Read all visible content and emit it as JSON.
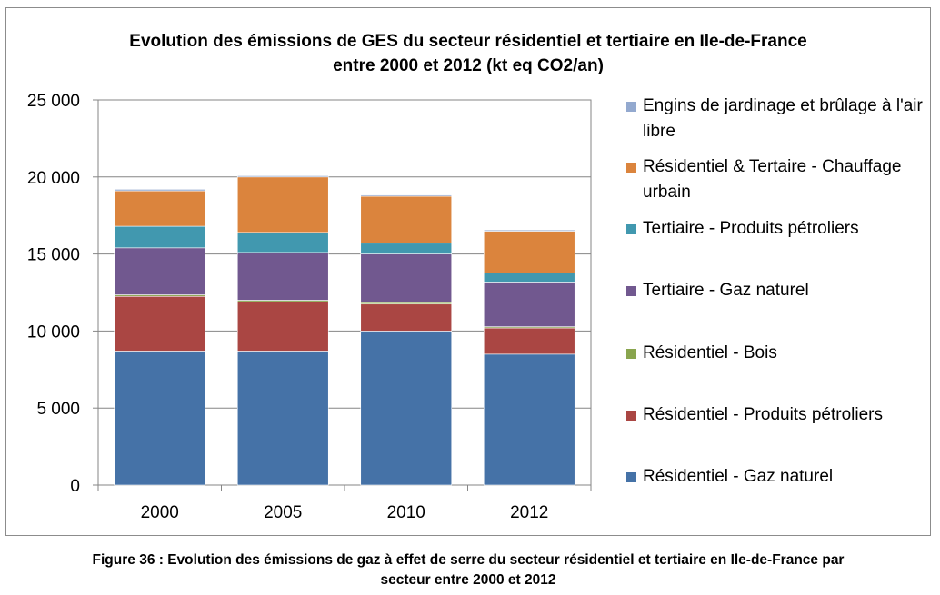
{
  "chart_data": {
    "type": "bar",
    "stacked": true,
    "title": "Evolution des émissions de GES du secteur résidentiel et tertiaire en Ile-de-France\nentre 2000 et 2012 (kt eq CO2/an)",
    "xlabel": "",
    "ylabel": "",
    "ylim": [
      0,
      25000
    ],
    "yticks": [
      "0",
      "5 000",
      "10 000",
      "15 000",
      "20 000",
      "25 000"
    ],
    "ytick_values": [
      0,
      5000,
      10000,
      15000,
      20000,
      25000
    ],
    "grid": true,
    "legend_position": "right",
    "categories": [
      "2000",
      "2005",
      "2010",
      "2012"
    ],
    "series": [
      {
        "name": "Résidentiel - Gaz naturel",
        "color": "#4572A7",
        "values": [
          8700,
          8700,
          10000,
          8500
        ]
      },
      {
        "name": "Résidentiel - Produits pétroliers",
        "color": "#AA4643",
        "values": [
          3550,
          3200,
          1750,
          1700
        ]
      },
      {
        "name": "Résidentiel - Bois",
        "color": "#89A54E",
        "values": [
          100,
          100,
          100,
          80
        ]
      },
      {
        "name": "Tertiaire - Gaz naturel",
        "color": "#71588F",
        "values": [
          3050,
          3100,
          3150,
          2900
        ]
      },
      {
        "name": "Tertiaire - Produits pétroliers",
        "color": "#4198AF",
        "values": [
          1400,
          1300,
          700,
          600
        ]
      },
      {
        "name": "Résidentiel & Tertaire - Chauffage urbain",
        "color": "#DB843D",
        "values": [
          2300,
          3600,
          3050,
          2700
        ]
      },
      {
        "name": "Engins de jardinage et brûlage à l'air libre",
        "color": "#93A9CF",
        "values": [
          100,
          80,
          80,
          80
        ]
      }
    ]
  },
  "caption": "Figure 36 : Evolution des émissions de gaz à effet de serre du secteur résidentiel et tertiaire en Ile-de-France par\nsecteur entre 2000 et 2012"
}
